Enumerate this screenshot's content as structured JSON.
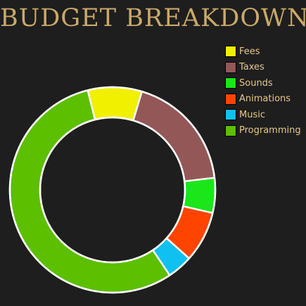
{
  "title": "BUDGET BREAKDOWN",
  "chart_data": {
    "type": "pie",
    "style": "donut",
    "title": "BUDGET BREAKDOWN",
    "legend_position": "top-right",
    "slices": [
      {
        "label": "Fees",
        "value": 8.5,
        "color": "#f0f000"
      },
      {
        "label": "Taxes",
        "value": 18.5,
        "color": "#935757"
      },
      {
        "label": "Sounds",
        "value": 5.5,
        "color": "#1ae61a"
      },
      {
        "label": "Animations",
        "value": 8.0,
        "color": "#ff4400"
      },
      {
        "label": "Music",
        "value": 4.0,
        "color": "#10c0f0"
      },
      {
        "label": "Programming",
        "value": 55.5,
        "color": "#5cbf00"
      }
    ]
  }
}
